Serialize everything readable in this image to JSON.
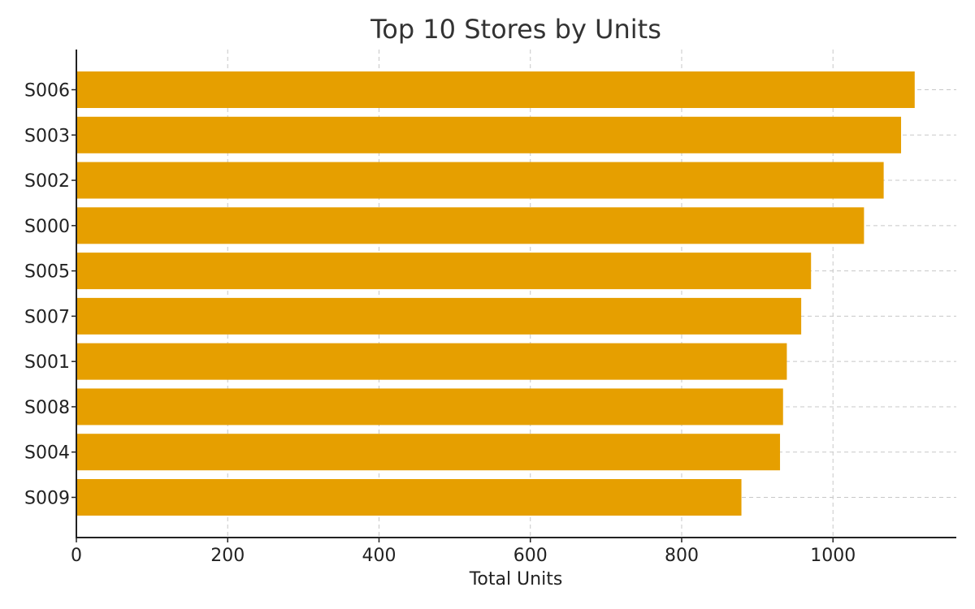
{
  "chart_data": {
    "type": "bar",
    "orientation": "horizontal",
    "title": "Top 10 Stores by Units",
    "xlabel": "Total Units",
    "ylabel": "",
    "categories": [
      "S006",
      "S003",
      "S002",
      "S000",
      "S005",
      "S007",
      "S001",
      "S008",
      "S004",
      "S009"
    ],
    "values": [
      1108,
      1090,
      1067,
      1041,
      971,
      958,
      939,
      934,
      930,
      879
    ],
    "xlim": [
      0,
      1163
    ],
    "xticks": [
      0,
      200,
      400,
      600,
      800,
      1000
    ],
    "xtick_labels": [
      "0",
      "200",
      "400",
      "600",
      "800",
      "1000"
    ],
    "grid": true,
    "legend": "none",
    "bar_color": "#e69f00"
  }
}
